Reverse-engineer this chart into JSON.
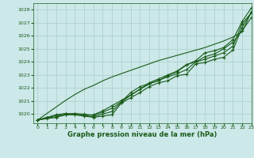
{
  "title": "Graphe pression niveau de la mer (hPa)",
  "bg_color": "#cce8e8",
  "grid_color": "#aacccc",
  "line_color": "#1a5c1a",
  "xlim": [
    -0.5,
    23
  ],
  "ylim": [
    1019.3,
    1028.5
  ],
  "yticks": [
    1020,
    1021,
    1022,
    1023,
    1024,
    1025,
    1026,
    1027,
    1028
  ],
  "xticks": [
    0,
    1,
    2,
    3,
    4,
    5,
    6,
    7,
    8,
    9,
    10,
    11,
    12,
    13,
    14,
    15,
    16,
    17,
    18,
    19,
    20,
    21,
    22,
    23
  ],
  "series_with_markers": [
    [
      1019.55,
      1019.65,
      1019.75,
      1019.95,
      1019.95,
      1019.85,
      1019.75,
      1019.85,
      1019.95,
      1020.85,
      1021.25,
      1021.65,
      1022.1,
      1022.4,
      1022.55,
      1022.95,
      1023.05,
      1023.85,
      1023.95,
      1024.2,
      1024.35,
      1024.9,
      1026.65,
      1027.85
    ],
    [
      1019.55,
      1019.75,
      1019.9,
      1020.0,
      1020.05,
      1020.0,
      1019.9,
      1020.15,
      1020.45,
      1020.95,
      1021.65,
      1022.1,
      1022.35,
      1022.55,
      1022.95,
      1023.25,
      1023.75,
      1024.1,
      1024.7,
      1024.85,
      1025.1,
      1025.7,
      1027.1,
      1028.15
    ],
    [
      1019.55,
      1019.75,
      1019.95,
      1020.05,
      1020.0,
      1019.9,
      1019.95,
      1020.25,
      1020.65,
      1021.05,
      1021.45,
      1021.9,
      1022.4,
      1022.7,
      1023.0,
      1023.3,
      1023.8,
      1024.0,
      1024.4,
      1024.6,
      1025.0,
      1025.5,
      1026.4,
      1027.4
    ],
    [
      1019.55,
      1019.7,
      1019.8,
      1019.95,
      1019.95,
      1019.9,
      1019.8,
      1020.0,
      1020.2,
      1020.9,
      1021.45,
      1021.9,
      1022.3,
      1022.6,
      1022.85,
      1023.1,
      1023.4,
      1024.0,
      1024.2,
      1024.45,
      1024.7,
      1025.2,
      1026.95,
      1027.75
    ]
  ],
  "series_smooth": [
    1019.55,
    1020.05,
    1020.55,
    1021.05,
    1021.5,
    1021.9,
    1022.2,
    1022.55,
    1022.85,
    1023.1,
    1023.35,
    1023.6,
    1023.85,
    1024.1,
    1024.3,
    1024.5,
    1024.7,
    1024.9,
    1025.1,
    1025.35,
    1025.6,
    1025.9,
    1026.3,
    1027.85
  ]
}
